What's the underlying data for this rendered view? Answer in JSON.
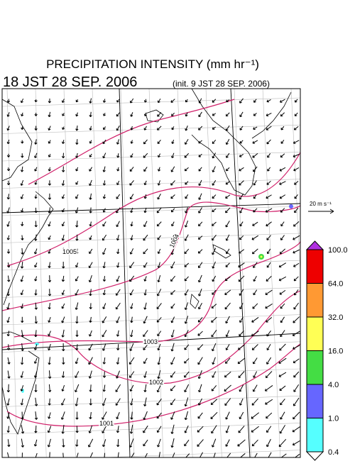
{
  "title": "PRECIPITATION INTENSITY (mm hr⁻¹)",
  "valid_time": "18 JST 28 SEP. 2006",
  "init_time": "(init. 9 JST 28 SEP. 2006)",
  "isobar_labels": [
    "1005",
    "1004",
    "1003",
    "1002",
    "1001"
  ],
  "vector_reference": "20 m s⁻¹",
  "colorbar": {
    "labels": [
      "100.0",
      "64.0",
      "32.0",
      "16.0",
      "4.0",
      "1.0",
      "0.4"
    ],
    "colors": [
      "#b030e0",
      "#ee0000",
      "#ff9933",
      "#ffff55",
      "#44dd44",
      "#6666ff",
      "#55ffff",
      "#ffffff"
    ]
  }
}
